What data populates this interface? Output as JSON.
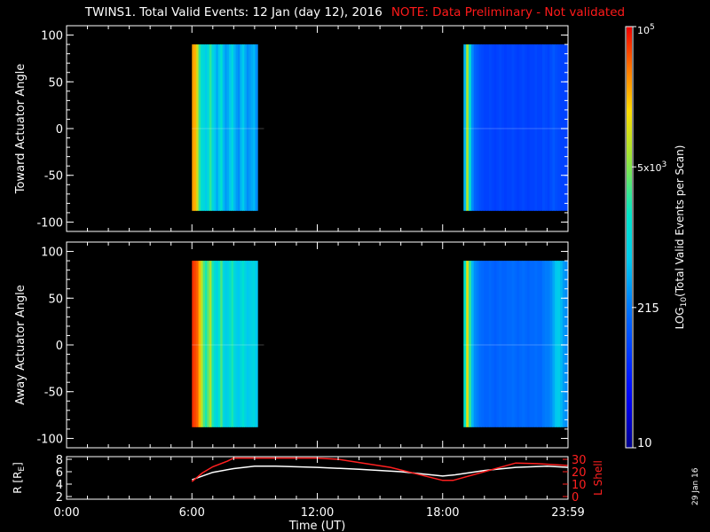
{
  "title": "TWINS1. Total Valid Events: 12 Jan (day  12), 2016",
  "note": "NOTE: Data Preliminary - Not validated",
  "date_stamp": "29 Jan 16",
  "colors": {
    "background": "#000000",
    "note": "#ff1a1a",
    "axes": "#ffffff",
    "r_line": "#ffffff",
    "lshell_line": "#ff2020"
  },
  "chart_data": [
    {
      "type": "heatmap",
      "name": "toward",
      "ylabel": "Toward Actuator Angle",
      "ylim": [
        -110,
        110
      ],
      "yticks": [
        100,
        50,
        0,
        -50,
        -100
      ],
      "xlim": [
        0,
        24
      ],
      "xticks": [
        0,
        6,
        12,
        18,
        24
      ],
      "xminor_step": 1,
      "angle_range": [
        -88,
        90
      ],
      "blocks": [
        {
          "t_start": 6.0,
          "t_end": 9.45,
          "gap": [
            9.22,
            9.35
          ],
          "columns": [
            0.86,
            0.84,
            0.74,
            0.6,
            0.52,
            0.5,
            0.46,
            0.52,
            0.6,
            0.5,
            0.44,
            0.4,
            0.46,
            0.54,
            0.42,
            0.38,
            0.4,
            0.44,
            0.5,
            0.42,
            0.38,
            0.36,
            0.42,
            0.46,
            0.4,
            0.36,
            0.38,
            0.4,
            0.42,
            0.36,
            0.34,
            0.38,
            0.36
          ]
        },
        {
          "t_start": 19.0,
          "t_end": 23.98,
          "gap": null,
          "columns": [
            0.42,
            0.7,
            0.52,
            0.36,
            0.3,
            0.28,
            0.26,
            0.25,
            0.24,
            0.24,
            0.25,
            0.24,
            0.23,
            0.24,
            0.25,
            0.24,
            0.23,
            0.24,
            0.24,
            0.25,
            0.24,
            0.23,
            0.24,
            0.25,
            0.24,
            0.23,
            0.24,
            0.24,
            0.25,
            0.24,
            0.24,
            0.26,
            0.25,
            0.24,
            0.26,
            0.28,
            0.26,
            0.25,
            0.24,
            0.24,
            0.24
          ]
        }
      ]
    },
    {
      "type": "heatmap",
      "name": "away",
      "ylabel": "Away Actuator Angle",
      "ylim": [
        -110,
        110
      ],
      "yticks": [
        100,
        50,
        0,
        -50,
        -100
      ],
      "xlim": [
        0,
        24
      ],
      "xticks": [
        0,
        6,
        12,
        18,
        24
      ],
      "xminor_step": 1,
      "angle_range": [
        -88,
        90
      ],
      "blocks": [
        {
          "t_start": 6.0,
          "t_end": 9.45,
          "gap": [
            9.22,
            9.35
          ],
          "columns": [
            0.96,
            0.94,
            0.92,
            0.84,
            0.72,
            0.62,
            0.58,
            0.64,
            0.7,
            0.58,
            0.52,
            0.48,
            0.55,
            0.62,
            0.5,
            0.46,
            0.48,
            0.52,
            0.58,
            0.5,
            0.46,
            0.44,
            0.5,
            0.54,
            0.48,
            0.44,
            0.46,
            0.48,
            0.5,
            0.44,
            0.42,
            0.46,
            0.44
          ]
        },
        {
          "t_start": 19.0,
          "t_end": 23.98,
          "gap": null,
          "columns": [
            0.55,
            0.76,
            0.6,
            0.42,
            0.36,
            0.34,
            0.32,
            0.31,
            0.3,
            0.3,
            0.31,
            0.3,
            0.29,
            0.3,
            0.31,
            0.3,
            0.3,
            0.31,
            0.31,
            0.32,
            0.31,
            0.3,
            0.31,
            0.32,
            0.31,
            0.3,
            0.31,
            0.31,
            0.32,
            0.31,
            0.31,
            0.33,
            0.34,
            0.34,
            0.36,
            0.4,
            0.44,
            0.46,
            0.42,
            0.38,
            0.36
          ]
        }
      ]
    },
    {
      "type": "line",
      "name": "orbit",
      "xlabel": "Time (UT)",
      "xlim": [
        0,
        24
      ],
      "xticks": [
        0,
        6,
        12,
        18,
        24
      ],
      "xtick_labels": [
        "0:00",
        "6:00",
        "12:00",
        "18:00",
        "23:59"
      ],
      "ylabel_left": "R [R",
      "ylabel_left_sub": "E",
      "ylabel_left_end": "]",
      "ylim_left": [
        2,
        8
      ],
      "yticks_left": [
        8,
        6,
        4,
        2
      ],
      "ylabel_right": "L Shell",
      "ylim_right": [
        0,
        30
      ],
      "yticks_right": [
        30,
        20,
        10,
        0
      ],
      "series": [
        {
          "axis": "left",
          "x": [
            6.0,
            7.0,
            8.0,
            9.0,
            10.0,
            12.0,
            14.0,
            16.0,
            18.0,
            18.6,
            20.0,
            21.5,
            23.0,
            24.0
          ],
          "y": [
            4.7,
            5.9,
            6.5,
            6.9,
            6.9,
            6.7,
            6.4,
            6.0,
            5.3,
            5.5,
            6.2,
            6.7,
            6.9,
            6.7
          ]
        },
        {
          "axis": "right",
          "x": [
            6.0,
            6.5,
            7.0,
            7.7,
            8.0,
            12.0,
            13.0,
            15.5,
            18.0,
            18.5,
            20.0,
            21.5,
            22.5,
            24.0
          ],
          "y": [
            12,
            19,
            24,
            28.5,
            31,
            31,
            30,
            23.5,
            13,
            13,
            20,
            27,
            26.5,
            25
          ]
        }
      ]
    }
  ],
  "colorbar": {
    "label": "LOG",
    "label_sub": "10",
    "label_end": "(Total Valid Events per Scan)",
    "ticks": [
      {
        "label": "10",
        "frac": 0.0
      },
      {
        "label": "215",
        "frac": 0.333
      },
      {
        "label": "5x10",
        "sup": "3",
        "frac": 0.667
      },
      {
        "label": "10",
        "sup": "5",
        "frac": 1.0
      }
    ]
  }
}
